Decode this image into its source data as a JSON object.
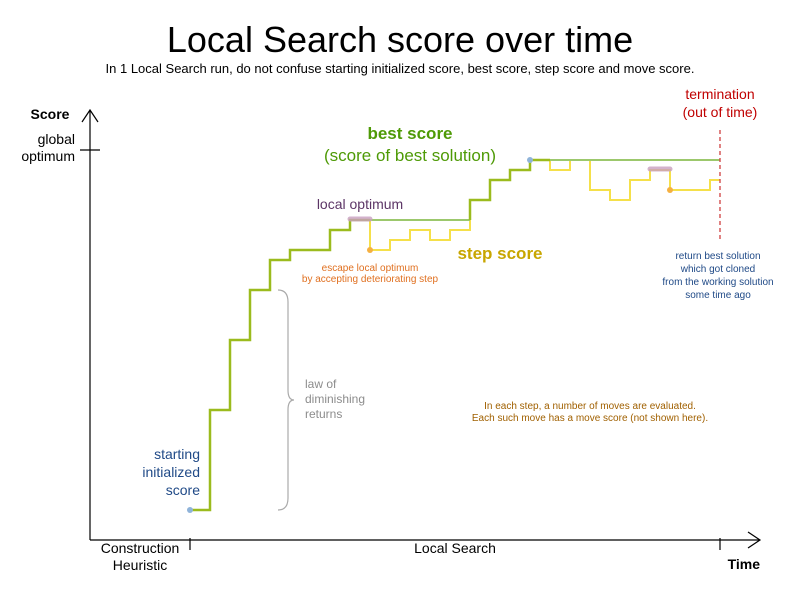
{
  "title": "Local Search score over time",
  "subtitle": "In 1 Local Search run, do not confuse starting initialized score, best score, step score and move score.",
  "axes": {
    "y_label": "Score",
    "y_tick": [
      "global",
      "optimum"
    ],
    "x_label": "Time",
    "x_phase_1": [
      "Construction",
      "Heuristic"
    ],
    "x_phase_2": "Local Search"
  },
  "labels": {
    "best_score": "best score",
    "best_score_sub": "(score of best solution)",
    "step_score": "step score",
    "local_optimum": "local optimum",
    "escape": [
      "escape local optimum",
      "by accepting deteriorating step"
    ],
    "starting": [
      "starting",
      "initialized",
      "score"
    ],
    "diminishing": [
      "law of",
      "diminishing",
      "returns"
    ],
    "termination": [
      "termination",
      "(out of time)"
    ],
    "return_best": [
      "return best solution",
      "which got cloned",
      "from the working solution",
      "some time ago"
    ],
    "moves_note": [
      "In each step, a number of moves are evaluated.",
      "Each such move has a move score (not shown here)."
    ]
  },
  "colors": {
    "best": "#9bbb1d",
    "best_light": "#9cc86c",
    "step": "#f5e04a",
    "best_label": "#4e9a06",
    "step_label": "#c8a600",
    "local_opt": "#5c3566",
    "escape": "#e07020",
    "blue_text": "#204a87",
    "termination": "#c00000",
    "gray": "#8c8c8c",
    "note": "#a06000"
  }
}
